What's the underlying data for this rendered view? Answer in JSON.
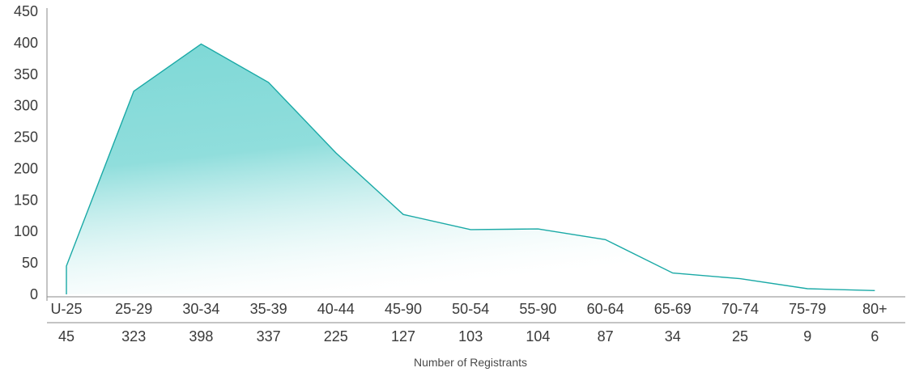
{
  "chart_data": {
    "type": "area",
    "categories": [
      "U-25",
      "25-29",
      "30-34",
      "35-39",
      "40-44",
      "45-90",
      "50-54",
      "55-90",
      "60-64",
      "65-69",
      "70-74",
      "75-79",
      "80+"
    ],
    "values": [
      45,
      323,
      398,
      337,
      225,
      127,
      103,
      104,
      87,
      34,
      25,
      9,
      6
    ],
    "xlabel": "Number of Registrants",
    "ylabel": "",
    "ylim": [
      0,
      450
    ],
    "yticks": [
      0,
      50,
      100,
      150,
      200,
      250,
      300,
      350,
      400,
      450
    ],
    "grid": false,
    "colors": {
      "area_top": "#7dd8d6",
      "area_line": "#1aa9a6",
      "axis": "#8a8a8a"
    }
  }
}
